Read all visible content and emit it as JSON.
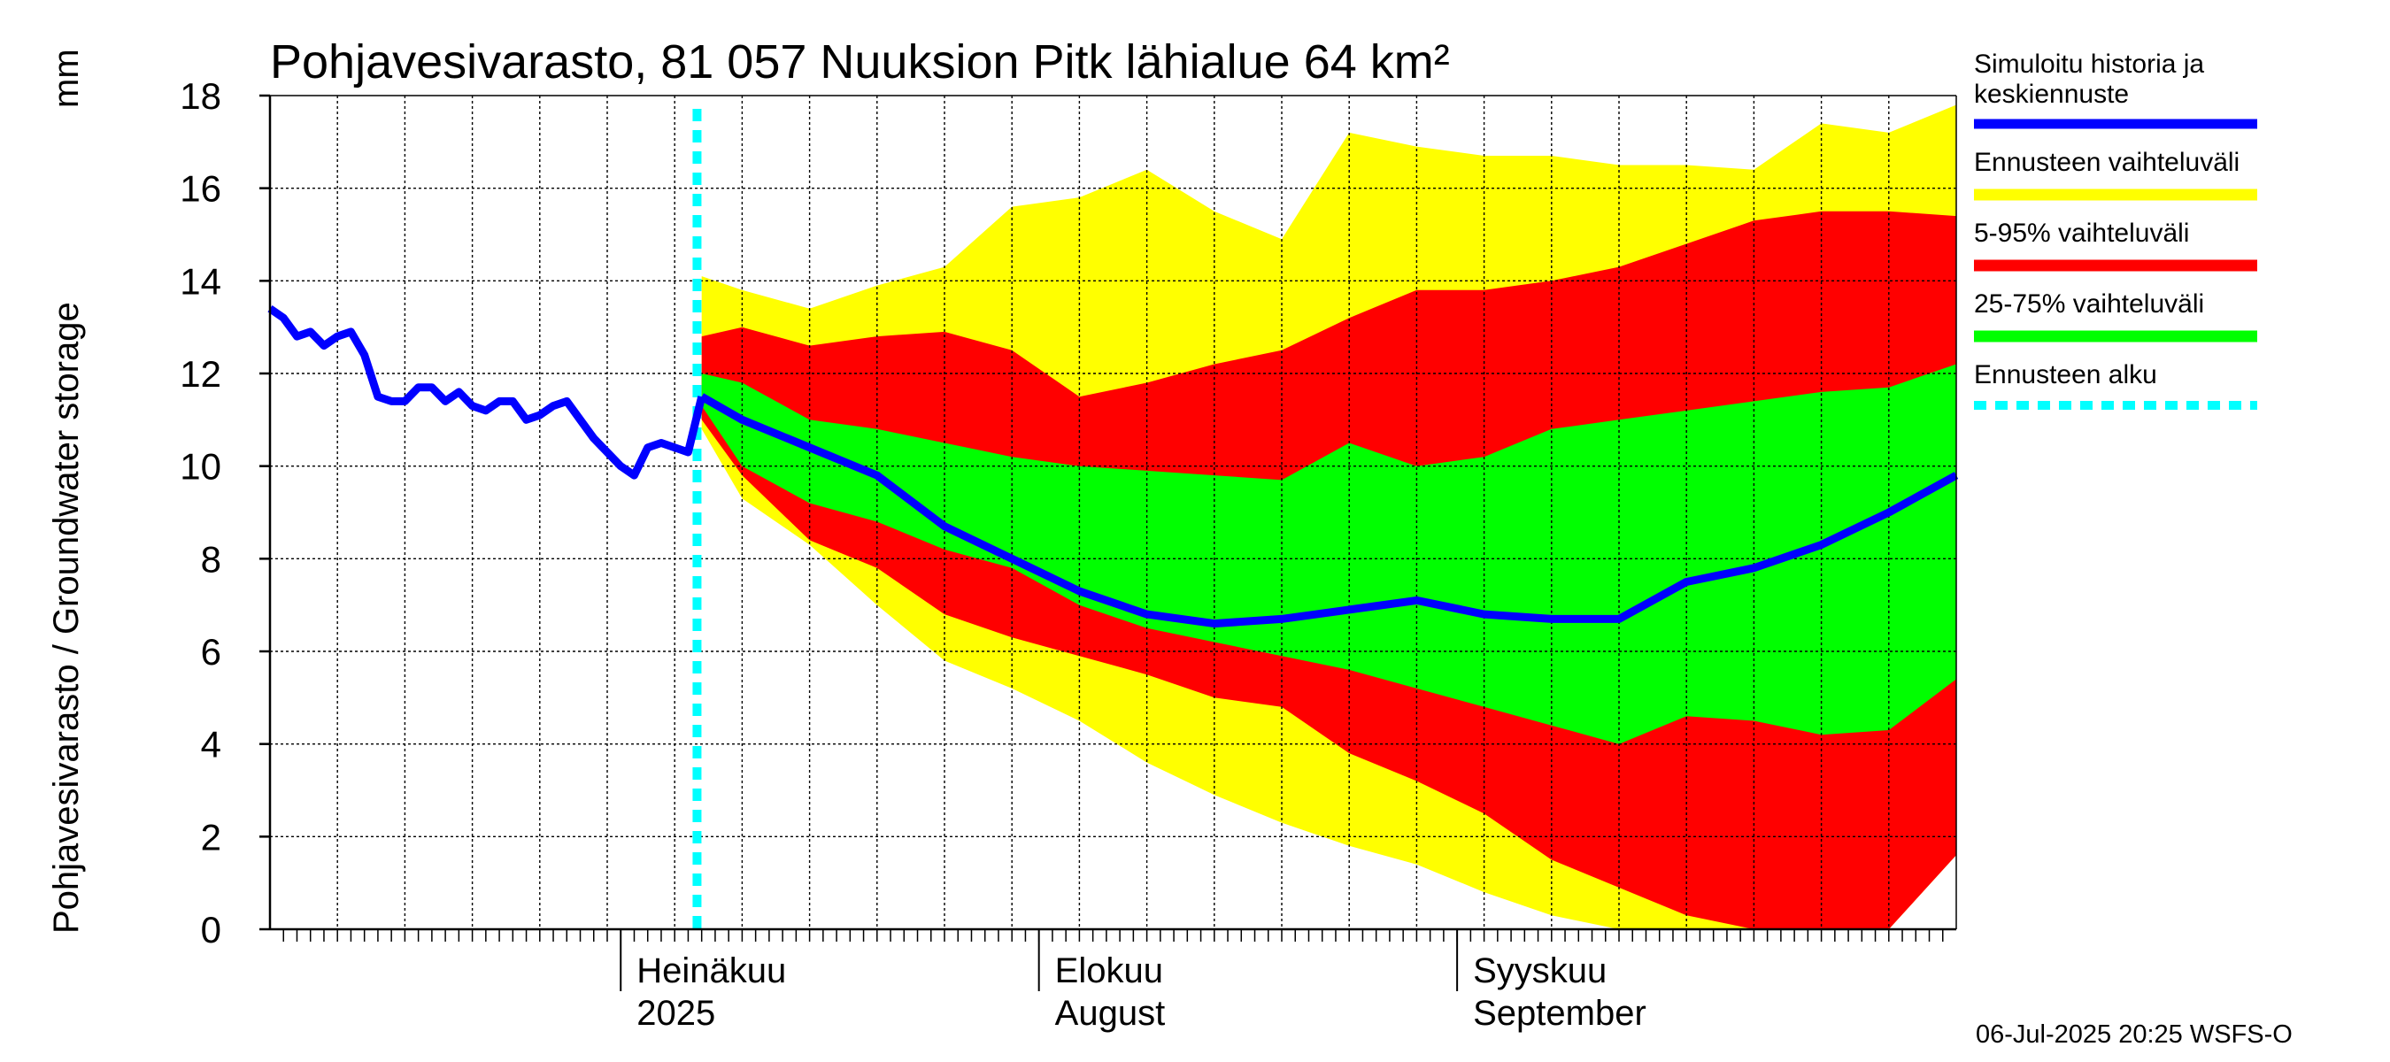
{
  "chart_data": {
    "type": "area",
    "title": "Pohjavesivarasto, 81 057 Nuuksion Pitk lähialue 64 km²",
    "ylabel_fi": "Pohjavesivarasto / Groundwater storage",
    "yunit": "mm",
    "ylim": [
      0,
      18
    ],
    "yticks": [
      0,
      2,
      4,
      6,
      8,
      10,
      12,
      14,
      16,
      18
    ],
    "xlim_day": [
      0,
      125
    ],
    "month_ticks": [
      {
        "day": 26,
        "line1": "Heinäkuu",
        "line2": "2025"
      },
      {
        "day": 57,
        "line1": "Elokuu",
        "line2": "August"
      },
      {
        "day": 88,
        "line1": "Syyskuu",
        "line2": "September"
      }
    ],
    "forecast_start_day": 31,
    "legend": {
      "history": "Simuloitu historia ja keskiennuste",
      "range": "Ennusteen vaihteluväli",
      "p5_95": "5-95% vaihteluväli",
      "p25_75": "25-75% vaihteluväli",
      "start": "Ennusteen alku"
    },
    "colors": {
      "history": "#0000ff",
      "range": "#ffff00",
      "p5_95": "#ff0000",
      "p25_75": "#00ff00",
      "start": "#00ffff"
    },
    "history": {
      "days": [
        0,
        1,
        2,
        3,
        4,
        5,
        6,
        7,
        8,
        9,
        10,
        11,
        12,
        13,
        14,
        15,
        16,
        17,
        18,
        19,
        20,
        21,
        22,
        23,
        24,
        25,
        26,
        27,
        28,
        29,
        30,
        31,
        32
      ],
      "values": [
        13.4,
        13.2,
        12.8,
        12.9,
        12.6,
        12.8,
        12.9,
        12.4,
        11.5,
        11.4,
        11.4,
        11.7,
        11.7,
        11.4,
        11.6,
        11.3,
        11.2,
        11.4,
        11.4,
        11.0,
        11.1,
        11.3,
        11.4,
        11.0,
        10.6,
        10.3,
        10.0,
        9.8,
        10.4,
        10.5,
        10.4,
        10.3,
        11.5
      ]
    },
    "forecast": {
      "days": [
        32,
        35,
        40,
        45,
        50,
        55,
        60,
        65,
        70,
        75,
        80,
        85,
        90,
        95,
        100,
        105,
        110,
        115,
        120,
        125
      ],
      "max": [
        14.1,
        13.8,
        13.4,
        13.9,
        14.3,
        15.6,
        15.8,
        16.4,
        15.5,
        14.9,
        17.2,
        16.9,
        16.7,
        16.7,
        16.5,
        16.5,
        16.4,
        17.4,
        17.2,
        17.8
      ],
      "p95": [
        12.8,
        13.0,
        12.6,
        12.8,
        12.9,
        12.5,
        11.5,
        11.8,
        12.2,
        12.5,
        13.2,
        13.8,
        13.8,
        14.0,
        14.3,
        14.8,
        15.3,
        15.5,
        15.5,
        15.4
      ],
      "p75": [
        12.0,
        11.8,
        11.0,
        10.8,
        10.5,
        10.2,
        10.0,
        9.9,
        9.8,
        9.7,
        10.5,
        10.0,
        10.2,
        10.8,
        11.0,
        11.2,
        11.4,
        11.6,
        11.7,
        12.2
      ],
      "mean": [
        11.5,
        11.0,
        10.4,
        9.8,
        8.7,
        8.0,
        7.3,
        6.8,
        6.6,
        6.7,
        6.9,
        7.1,
        6.8,
        6.7,
        6.7,
        7.5,
        7.8,
        8.3,
        9.0,
        9.8
      ],
      "p25": [
        11.3,
        10.0,
        9.2,
        8.8,
        8.2,
        7.8,
        7.0,
        6.5,
        6.2,
        5.9,
        5.6,
        5.2,
        4.8,
        4.4,
        4.0,
        4.6,
        4.5,
        4.2,
        4.3,
        5.4
      ],
      "p5": [
        11.0,
        9.8,
        8.4,
        7.8,
        6.8,
        6.3,
        5.9,
        5.5,
        5.0,
        4.8,
        3.8,
        3.2,
        2.5,
        1.5,
        0.9,
        0.3,
        0.0,
        0.0,
        0.0,
        1.6
      ],
      "min": [
        10.8,
        9.3,
        8.3,
        7.0,
        5.8,
        5.2,
        4.5,
        3.6,
        2.9,
        2.3,
        1.8,
        1.4,
        0.8,
        0.3,
        0.0,
        0.0,
        0.0,
        0.0,
        0.0,
        1.6
      ]
    },
    "footer": "06-Jul-2025 20:25 WSFS-O"
  }
}
